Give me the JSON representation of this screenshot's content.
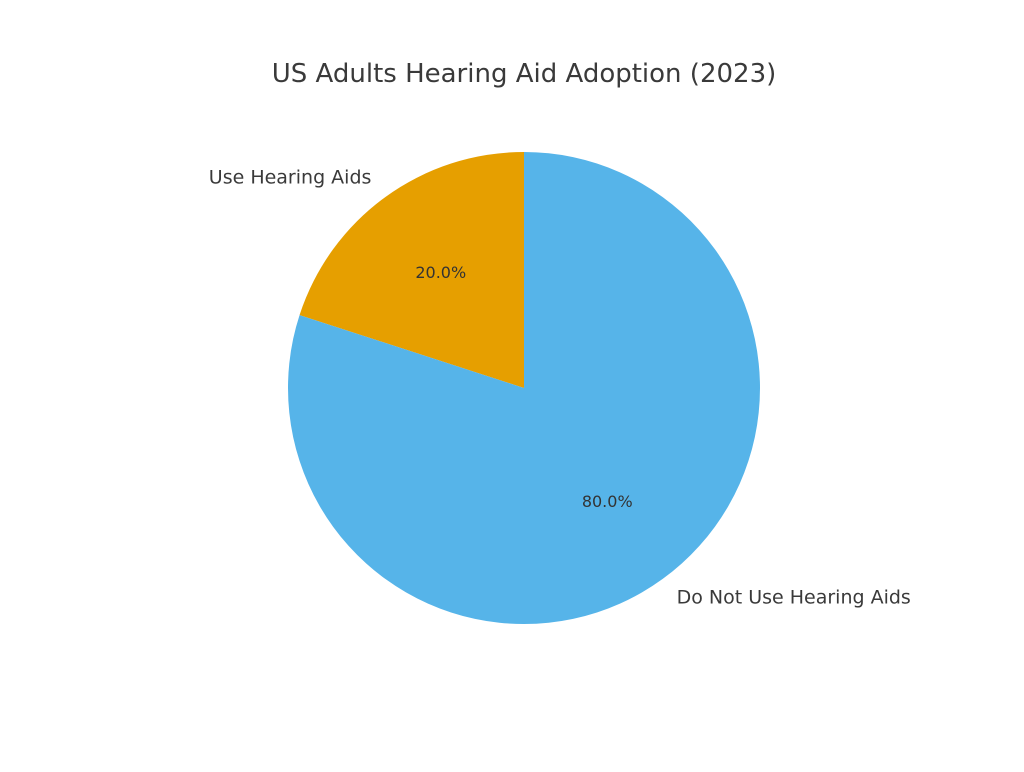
{
  "chart_data": {
    "type": "pie",
    "title": "US Adults Hearing Aid Adoption (2023)",
    "categories": [
      "Use Hearing Aids",
      "Do Not Use Hearing Aids"
    ],
    "values": [
      20,
      80
    ],
    "percent_labels": [
      "20.0%",
      "80.0%"
    ],
    "colors": [
      "#E69F00",
      "#56B4E9"
    ],
    "start_angle": "90 degrees (12 o'clock)",
    "direction": "counterclockwise",
    "legend": "none"
  }
}
